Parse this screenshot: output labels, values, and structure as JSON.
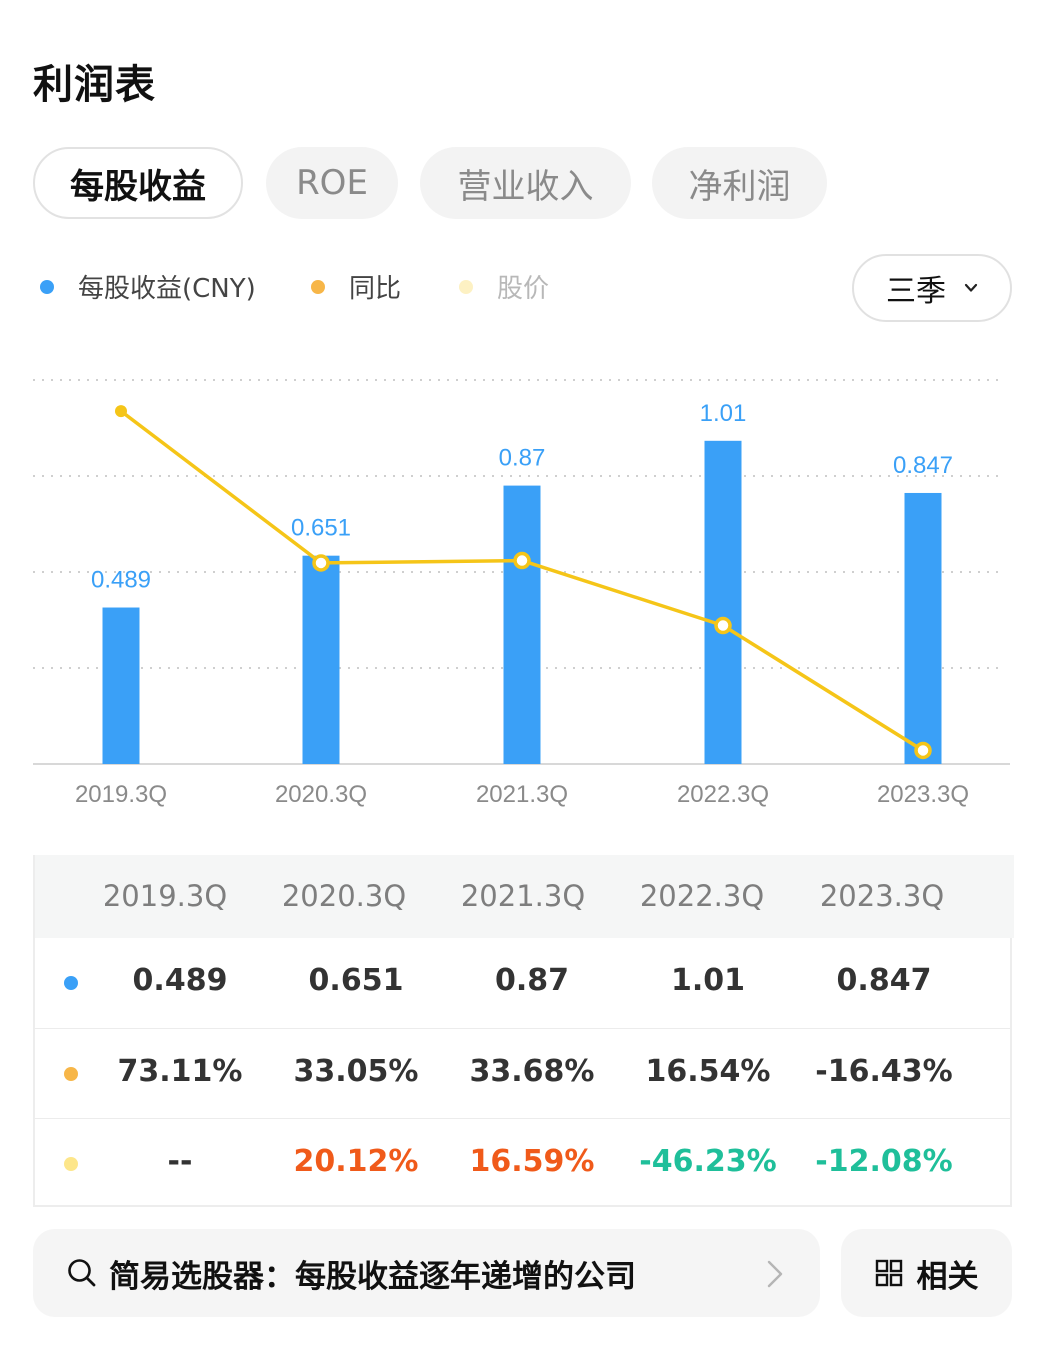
{
  "page_title": "利润表",
  "tabs": [
    {
      "label": "每股收益",
      "active": true
    },
    {
      "label": "ROE",
      "active": false
    },
    {
      "label": "营业收入",
      "active": false
    },
    {
      "label": "净利润",
      "active": false
    }
  ],
  "legend": [
    {
      "label": "每股收益(CNY)",
      "color": "#3aa0f7"
    },
    {
      "label": "同比",
      "color": "#f7b648"
    },
    {
      "label": "股价",
      "color": "#fdf1c3"
    }
  ],
  "period_select": {
    "value": "三季",
    "icon": "chevron-down-icon"
  },
  "chart_data": {
    "type": "bar",
    "categories": [
      "2019.3Q",
      "2020.3Q",
      "2021.3Q",
      "2022.3Q",
      "2023.3Q"
    ],
    "series": [
      {
        "name": "每股收益(CNY)",
        "type": "bar",
        "values": [
          0.489,
          0.651,
          0.87,
          1.01,
          0.847
        ],
        "labels": [
          "0.489",
          "0.651",
          "0.87",
          "1.01",
          "0.847"
        ],
        "color": "#3aa0f7"
      },
      {
        "name": "同比",
        "type": "line",
        "values": [
          73.11,
          33.05,
          33.68,
          16.54,
          -16.43
        ],
        "color": "#f5c518"
      }
    ],
    "grid": true,
    "legend_position": "top-left"
  },
  "table": {
    "headers": [
      "2019.3Q",
      "2020.3Q",
      "2021.3Q",
      "2022.3Q",
      "2023.3Q"
    ],
    "rows": [
      {
        "dot_color": "#3aa0f7",
        "cells": [
          "0.489",
          "0.651",
          "0.87",
          "1.01",
          "0.847"
        ],
        "cell_colors": [
          "#333333",
          "#333333",
          "#333333",
          "#333333",
          "#333333"
        ]
      },
      {
        "dot_color": "#f7b648",
        "cells": [
          "73.11%",
          "33.05%",
          "33.68%",
          "16.54%",
          "-16.43%"
        ],
        "cell_colors": [
          "#333333",
          "#333333",
          "#333333",
          "#333333",
          "#333333"
        ]
      },
      {
        "dot_color": "#fde68a",
        "cells": [
          "--",
          "20.12%",
          "16.59%",
          "-46.23%",
          "-12.08%"
        ],
        "cell_colors": [
          "#333333",
          "#f05a1a",
          "#f05a1a",
          "#1fbf9a",
          "#1fbf9a"
        ]
      }
    ]
  },
  "screener": {
    "label": "简易选股器：每股收益逐年递增的公司",
    "icon": "search-icon",
    "arrow_icon": "chevron-right-icon"
  },
  "related": {
    "label": "相关",
    "icon": "grid-icon"
  }
}
